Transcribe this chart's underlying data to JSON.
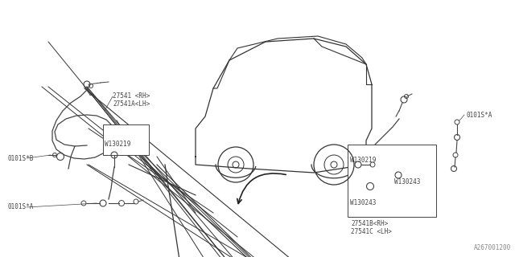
{
  "bg_color": "#ffffff",
  "line_color": "#444444",
  "text_color": "#444444",
  "diagram_id": "A267001200",
  "front_part1": "27541 <RH>",
  "front_part2": "27541A<LH>",
  "front_bolt": "W130219",
  "front_ref_b": "0101S*B",
  "front_ref_a": "0101S*A",
  "rear_part1": "27541B<RH>",
  "rear_part2": "27541C <LH>",
  "rear_bolt1": "W130219",
  "rear_bolt2": "W130243",
  "rear_bolt3": "W130243",
  "rear_ref_a": "0101S*A",
  "car_color": "#333333",
  "figsize": [
    6.4,
    3.2
  ],
  "dpi": 100
}
